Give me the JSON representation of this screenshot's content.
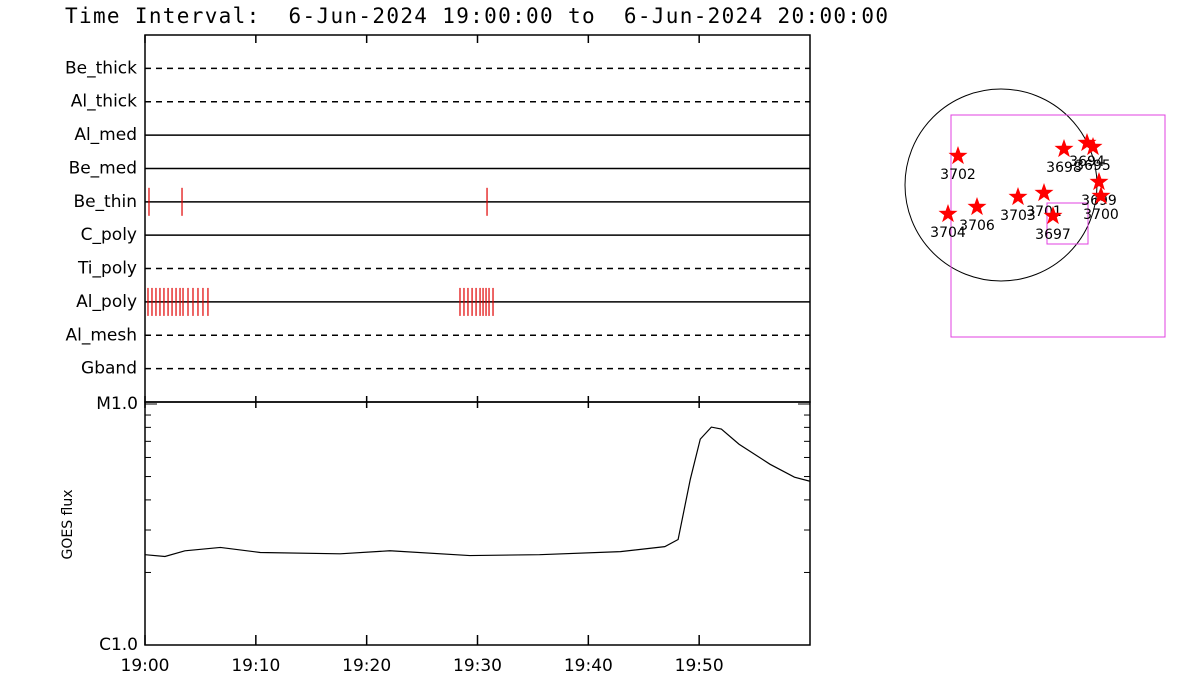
{
  "title": "Time Interval:  6-Jun-2024 19:00:00 to  6-Jun-2024 20:00:00",
  "chart_data": [
    {
      "type": "event",
      "categories": [
        "Be_thick",
        "Al_thick",
        "Al_med",
        "Be_med",
        "Be_thin",
        "C_poly",
        "Ti_poly",
        "Al_poly",
        "Al_mesh",
        "Gband"
      ],
      "line_styles": [
        "dashed",
        "dashed",
        "solid",
        "solid",
        "solid",
        "solid",
        "dashed",
        "solid",
        "dashed",
        "dashed"
      ],
      "events": [
        [],
        [],
        [],
        [],
        [
          0.36,
          3.34,
          30.86
        ],
        [],
        [],
        [
          0.27,
          0.63,
          0.99,
          1.35,
          1.71,
          2.08,
          2.44,
          2.8,
          3.16,
          3.43,
          3.88,
          4.33,
          4.78,
          5.23,
          5.68,
          28.42,
          28.78,
          29.14,
          29.51,
          29.87,
          30.23,
          30.5,
          30.77,
          31.04,
          31.4
        ],
        [],
        []
      ],
      "color": "#e00000",
      "xlim": [
        0,
        60
      ]
    },
    {
      "type": "line",
      "x": [
        0,
        1.8,
        3.6,
        6.8,
        10.4,
        17.6,
        22.1,
        29.3,
        35.6,
        42.9,
        46.9,
        48.1,
        49.2,
        50.1,
        51.1,
        52.0,
        53.6,
        56.4,
        58.6,
        60
      ],
      "values": [
        2.37e-06,
        2.33e-06,
        2.46e-06,
        2.54e-06,
        2.42e-06,
        2.39e-06,
        2.46e-06,
        2.35e-06,
        2.37e-06,
        2.44e-06,
        2.56e-06,
        2.74e-06,
        4.87e-06,
        7.15e-06,
        8.02e-06,
        7.87e-06,
        6.81e-06,
        5.62e-06,
        4.97e-06,
        4.78e-06
      ],
      "color": "#000000",
      "log_scale": true,
      "ylabel": "GOES flux",
      "ylim": [
        1e-06,
        1e-05
      ],
      "yticks": [
        {
          "value": 1e-06,
          "label": "C1.0"
        },
        {
          "value": 1e-05,
          "label": "M1.0"
        }
      ],
      "xlim": [
        0,
        60
      ],
      "xticks": [
        {
          "value": 0,
          "label": "19:00"
        },
        {
          "value": 10,
          "label": "19:10"
        },
        {
          "value": 20,
          "label": "19:20"
        },
        {
          "value": 30,
          "label": "19:30"
        },
        {
          "value": 40,
          "label": "19:40"
        },
        {
          "value": 50,
          "label": "19:50"
        }
      ]
    },
    {
      "type": "map",
      "disk_radius": 960,
      "labels": [
        "3702",
        "3704",
        "3706",
        "3703",
        "3701",
        "3697",
        "3698",
        "3694",
        "3695",
        "3699",
        "3700"
      ],
      "x": [
        -430,
        -530,
        -240,
        170,
        430,
        520,
        630,
        860,
        920,
        980,
        1000
      ],
      "y": [
        290,
        -290,
        -220,
        -120,
        -80,
        -310,
        360,
        420,
        380,
        30,
        -110
      ],
      "color": "#ff0000",
      "rectangles": [
        {
          "x": [
            -500,
            1640
          ],
          "y": [
            -1520,
            700
          ]
        },
        {
          "x": [
            460,
            870
          ],
          "y": [
            -590,
            -180
          ]
        }
      ],
      "rect_color": "#e040e0"
    }
  ]
}
